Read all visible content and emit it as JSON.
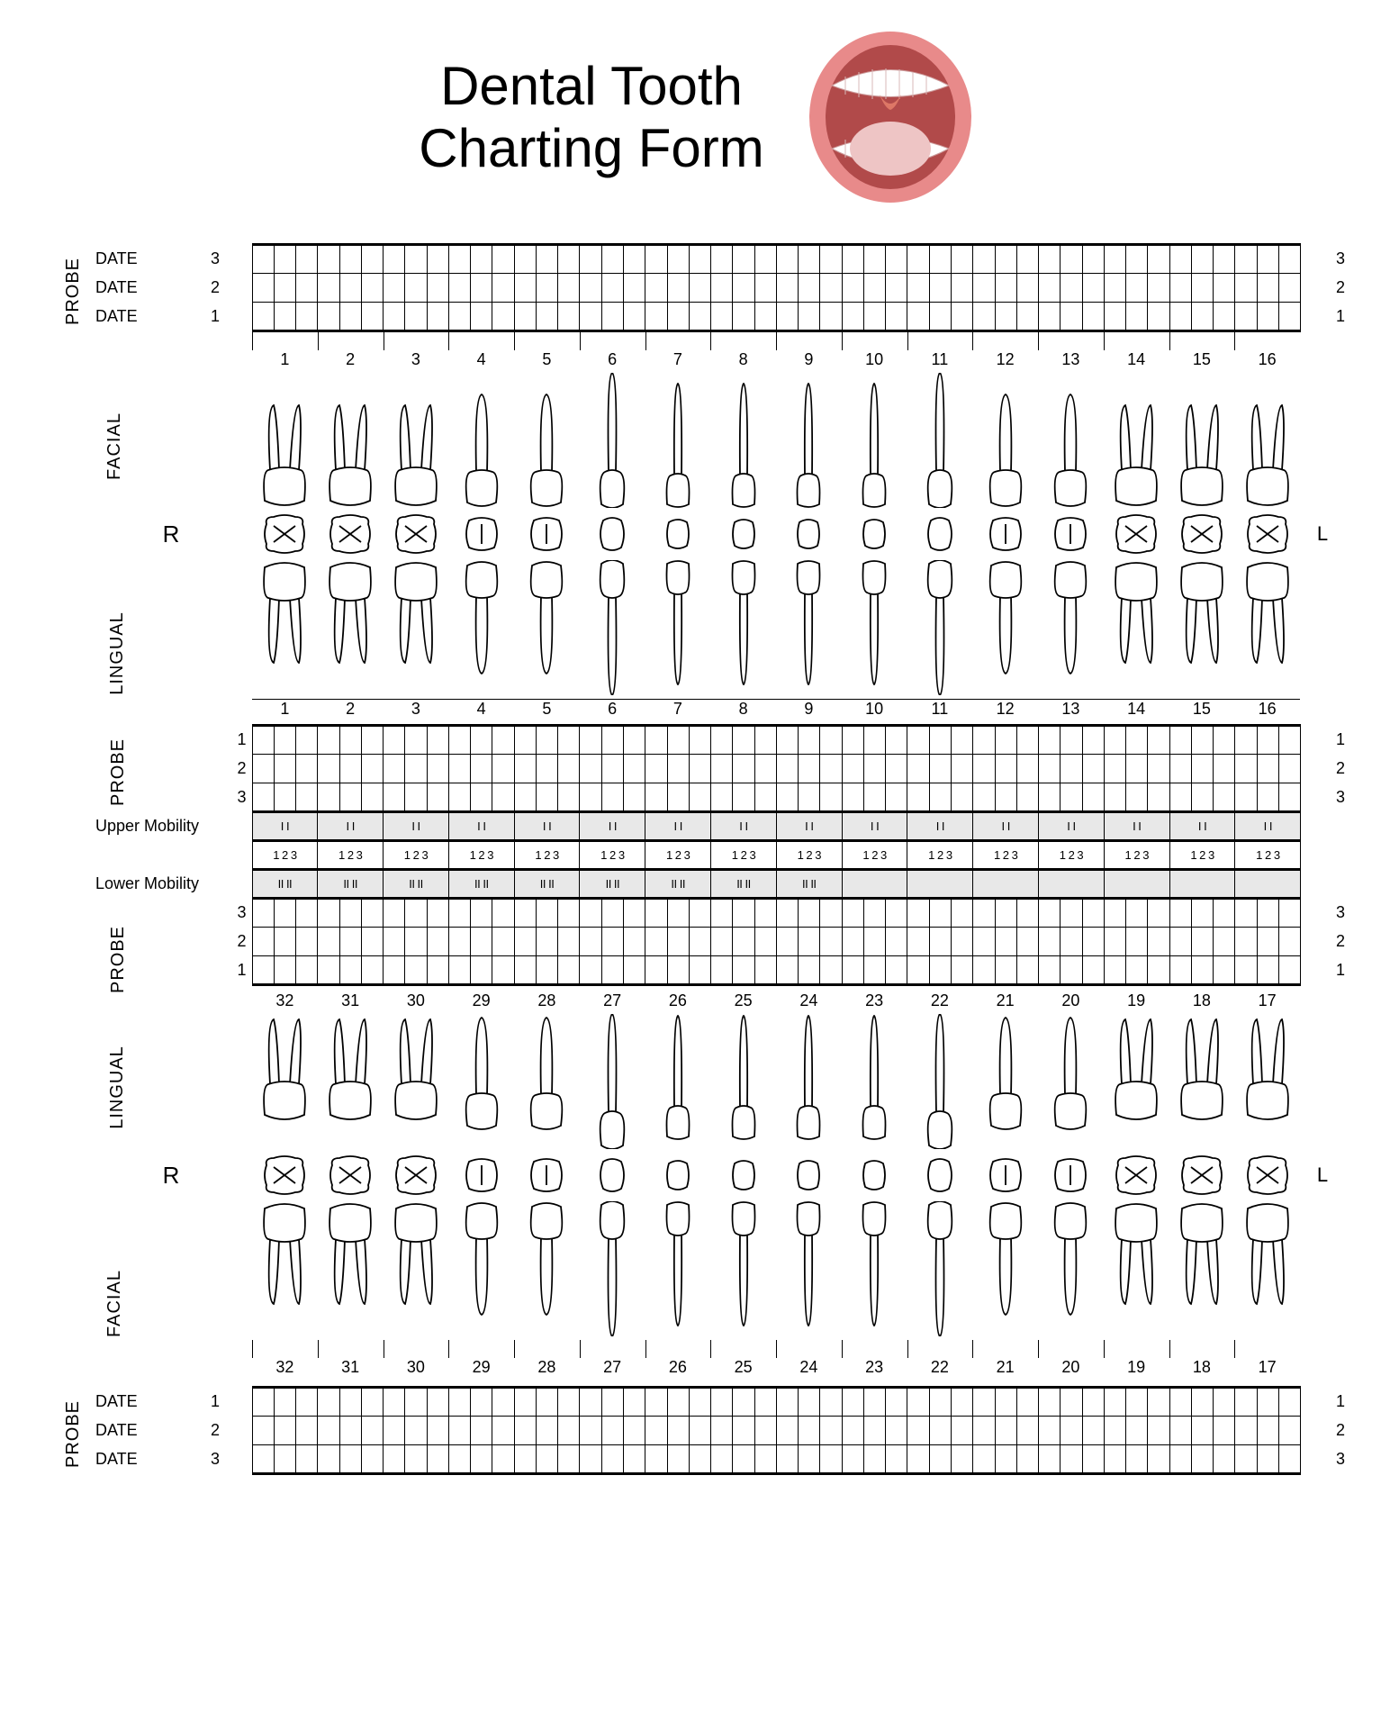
{
  "title_line1": "Dental Tooth",
  "title_line2": "Charting Form",
  "labels": {
    "probe": "PROBE",
    "date": "DATE",
    "facial": "FACIAL",
    "lingual": "LINGUAL",
    "upper_mobility": "Upper Mobility",
    "lower_mobility": "Lower Mobility",
    "right": "R",
    "left": "L"
  },
  "probe_date_rows_top": [
    "3",
    "2",
    "1"
  ],
  "probe_date_rows_bottom": [
    "1",
    "2",
    "3"
  ],
  "upper_teeth": [
    "1",
    "2",
    "3",
    "4",
    "5",
    "6",
    "7",
    "8",
    "9",
    "10",
    "11",
    "12",
    "13",
    "14",
    "15",
    "16"
  ],
  "lower_teeth": [
    "32",
    "31",
    "30",
    "29",
    "28",
    "27",
    "26",
    "25",
    "24",
    "23",
    "22",
    "21",
    "20",
    "19",
    "18",
    "17"
  ],
  "mobility_upper_cell": "I  I",
  "mobility_123_cell": "1 2 3",
  "mobility_lower_cell": "II  II",
  "mobility_lower_count": 9,
  "mid_probe_rows_a": [
    "1",
    "2",
    "3"
  ],
  "mid_probe_rows_b": [
    "3",
    "2",
    "1"
  ],
  "colors": {
    "background": "#ffffff",
    "line": "#000000",
    "shade": "#e8e8e8",
    "mouth_lips": "#e88a8a",
    "mouth_inner": "#b14a4a",
    "mouth_tongue": "#eec5c5",
    "mouth_teeth": "#ffffff"
  },
  "tooth_types_upper": [
    "molar",
    "molar",
    "molar",
    "premolar",
    "premolar",
    "canine",
    "incisor",
    "incisor",
    "incisor",
    "incisor",
    "canine",
    "premolar",
    "premolar",
    "molar",
    "molar",
    "molar"
  ],
  "tooth_types_lower": [
    "molar",
    "molar",
    "molar",
    "premolar",
    "premolar",
    "canine",
    "incisor",
    "incisor",
    "incisor",
    "incisor",
    "canine",
    "premolar",
    "premolar",
    "molar",
    "molar",
    "molar"
  ]
}
